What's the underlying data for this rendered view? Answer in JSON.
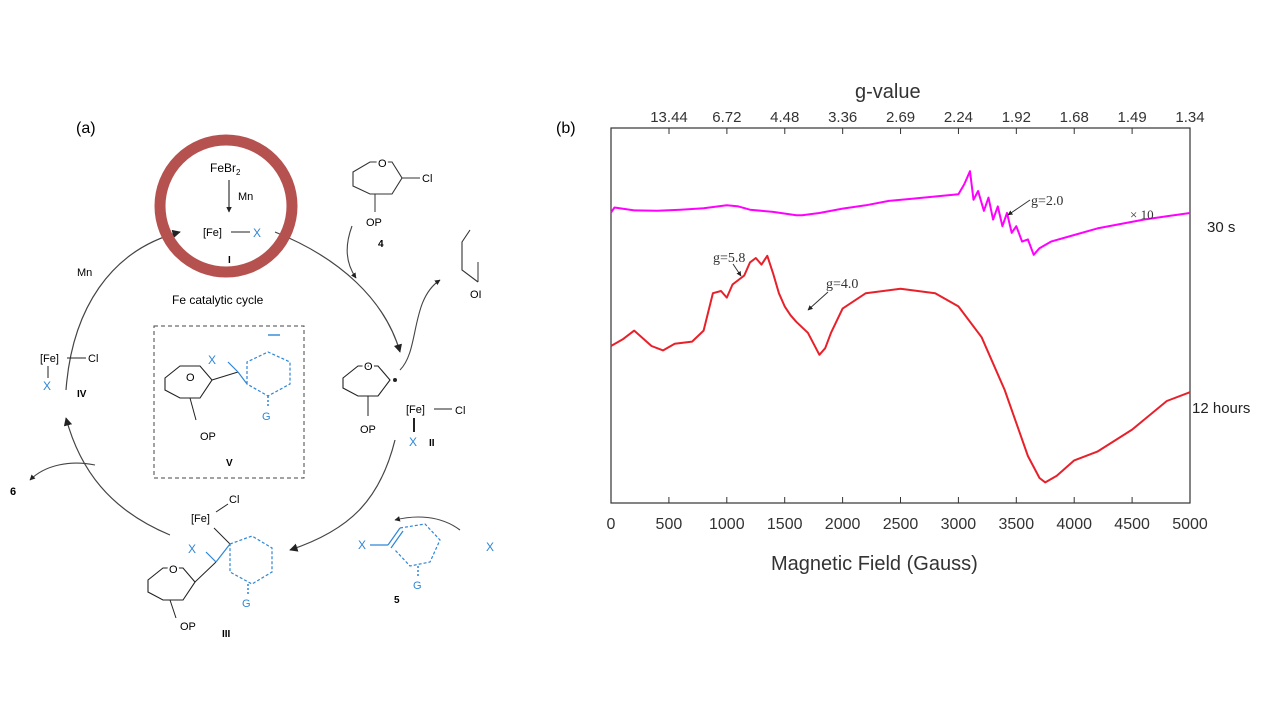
{
  "panel_a": {
    "label": "(a)",
    "cycle_title": "Fe catalytic cycle",
    "highlight_color": "#b5524f",
    "blue_color": "#2e86d6",
    "initiation": {
      "reagent": "FeBr",
      "reagent_sub": "2",
      "reductant": "Mn"
    },
    "species_I": {
      "fe": "[Fe]",
      "x": "X",
      "tag": "I"
    },
    "substrate_4": {
      "cl": "Cl",
      "op": "OP",
      "tag": "4"
    },
    "radical_II": {
      "op": "OP",
      "fe": "[Fe]",
      "cl": "Cl",
      "x": "X",
      "tag": "II"
    },
    "species_III": {
      "fe": "[Fe]",
      "cl": "Cl",
      "x": "X",
      "op": "OP",
      "g": "G",
      "tag": "III"
    },
    "species_IV": {
      "fe": "[Fe]",
      "cl": "Cl",
      "x": "X",
      "tag": "IV"
    },
    "intermediate_V": {
      "x": "X",
      "op": "OP",
      "g": "G",
      "tag": "V"
    },
    "reagent_5": {
      "x": "X",
      "g": "G",
      "tag": "5",
      "x2": "X"
    },
    "mn_label": "Mn",
    "product_6": "6",
    "cut_text": {
      "op_partial": "OI"
    }
  },
  "panel_b": {
    "label": "(b)",
    "top_axis_title": "g-value",
    "bottom_axis_title": "Magnetic Field (Gauss)",
    "top_ticks": [
      "13.44",
      "6.72",
      "4.48",
      "3.36",
      "2.69",
      "2.24",
      "1.92",
      "1.68",
      "1.49",
      "1.34"
    ],
    "annotations": {
      "g20": "g=2.0",
      "g58": "g=5.8",
      "g40": "g=4.0",
      "scale": "× 10"
    },
    "trace_labels": {
      "top": "30 s",
      "bottom": "12 hours"
    },
    "colors": {
      "top_trace": "#ff00ff",
      "bottom_trace": "#e8202a"
    }
  },
  "chart_data": {
    "type": "line",
    "title": "",
    "xlabel": "Magnetic Field (Gauss)",
    "x2label": "g-value",
    "ylabel": "",
    "xlim": [
      0,
      5000
    ],
    "xticks": [
      0,
      500,
      1000,
      1500,
      2000,
      2500,
      3000,
      3500,
      4000,
      4500,
      5000
    ],
    "series": [
      {
        "name": "30 s",
        "color": "#ff00ff",
        "note": "× 10",
        "x": [
          0,
          30,
          200,
          400,
          600,
          800,
          1000,
          1100,
          1200,
          1400,
          1600,
          1650,
          1800,
          2000,
          2200,
          2400,
          2600,
          2800,
          3000,
          3050,
          3100,
          3130,
          3170,
          3220,
          3260,
          3300,
          3340,
          3380,
          3420,
          3460,
          3500,
          3550,
          3600,
          3650,
          3700,
          3800,
          4000,
          4200,
          4400,
          4600,
          4800,
          5000
        ],
        "y": [
          0.02,
          0.25,
          0.12,
          0.1,
          0.15,
          0.22,
          0.35,
          0.3,
          0.15,
          0.05,
          -0.1,
          -0.1,
          0.0,
          0.2,
          0.35,
          0.55,
          0.65,
          0.75,
          0.85,
          1.3,
          1.9,
          0.6,
          1.0,
          0.1,
          0.7,
          -0.3,
          0.3,
          -0.6,
          0.0,
          -0.9,
          -0.6,
          -1.3,
          -1.2,
          -1.9,
          -1.6,
          -1.3,
          -1.0,
          -0.7,
          -0.5,
          -0.3,
          -0.15,
          0.0
        ]
      },
      {
        "name": "12 hours",
        "color": "#e8202a",
        "x": [
          0,
          100,
          200,
          350,
          450,
          550,
          700,
          800,
          880,
          950,
          1000,
          1050,
          1100,
          1150,
          1200,
          1250,
          1300,
          1350,
          1400,
          1450,
          1500,
          1550,
          1600,
          1700,
          1800,
          1850,
          1900,
          2000,
          2200,
          2500,
          2800,
          3000,
          3200,
          3400,
          3600,
          3700,
          3750,
          3850,
          4000,
          4200,
          4500,
          4800,
          5000
        ],
        "y": [
          0.0,
          0.15,
          0.35,
          0.0,
          -0.1,
          0.05,
          0.1,
          0.35,
          1.2,
          1.25,
          1.1,
          1.4,
          1.5,
          1.6,
          1.9,
          2.0,
          1.85,
          2.05,
          1.65,
          1.2,
          0.9,
          0.7,
          0.55,
          0.3,
          -0.2,
          -0.05,
          0.3,
          0.85,
          1.2,
          1.3,
          1.2,
          0.9,
          0.2,
          -1.0,
          -2.5,
          -3.0,
          -3.1,
          -2.95,
          -2.6,
          -2.4,
          -1.9,
          -1.25,
          -1.05
        ]
      }
    ],
    "annotations": [
      "g=2.0",
      "g=5.8",
      "g=4.0",
      "× 10"
    ],
    "grid": false,
    "legend": "none"
  }
}
